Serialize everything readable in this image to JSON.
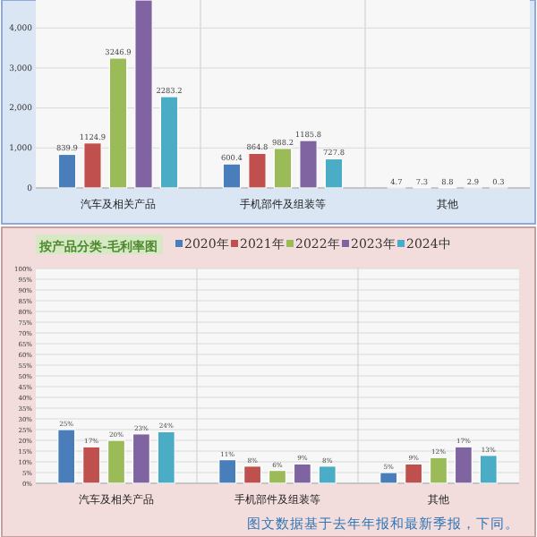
{
  "chart_data": [
    {
      "type": "bar",
      "categories": [
        "汽车及相关产品",
        "手机部件及组装等",
        "其他"
      ],
      "ylim": [
        0,
        4700
      ],
      "yticks": [
        0,
        {
          "value": 1000,
          "label": "1,000"
        },
        {
          "value": 2000,
          "label": "2,000"
        },
        {
          "value": 3000,
          "label": "3,000"
        },
        {
          "value": 4000,
          "label": "4,000"
        }
      ],
      "grid": true,
      "series": [
        {
          "color": "#4a7ebb",
          "values": [
            839.9,
            600.4,
            4.7
          ],
          "value_labels": [
            "839.9",
            "600.4",
            "4.7"
          ]
        },
        {
          "color": "#c0504d",
          "values": [
            1124.9,
            864.8,
            7.3
          ],
          "value_labels": [
            "1124.9",
            "864.8",
            "7.3"
          ]
        },
        {
          "color": "#9bbb59",
          "values": [
            3246.9,
            988.2,
            8.8
          ],
          "value_labels": [
            "3246.9",
            "988.2",
            "8.8"
          ]
        },
        {
          "color": "#8064a2",
          "values": [
            4700,
            1185.8,
            2.9
          ],
          "value_labels": [
            null,
            "1185.8",
            "2.9"
          ]
        },
        {
          "color": "#4bacc6",
          "values": [
            2283.2,
            727.8,
            0.3
          ],
          "value_labels": [
            "2283.2",
            "727.8",
            "0.3"
          ]
        }
      ]
    },
    {
      "type": "bar",
      "title": "按产品分类-毛利率图",
      "categories": [
        "汽车及相关产品",
        "手机部件及组装等",
        "其他"
      ],
      "ylim": [
        0,
        100
      ],
      "yticks": [
        {
          "value": 0,
          "label": "0%"
        },
        {
          "value": 5,
          "label": "5%"
        },
        {
          "value": 10,
          "label": "10%"
        },
        {
          "value": 15,
          "label": "15%"
        },
        {
          "value": 20,
          "label": "20%"
        },
        {
          "value": 25,
          "label": "25%"
        },
        {
          "value": 30,
          "label": "30%"
        },
        {
          "value": 35,
          "label": "35%"
        },
        {
          "value": 40,
          "label": "40%"
        },
        {
          "value": 45,
          "label": "45%"
        },
        {
          "value": 50,
          "label": "50%"
        },
        {
          "value": 55,
          "label": "55%"
        },
        {
          "value": 60,
          "label": "60%"
        },
        {
          "value": 65,
          "label": "65%"
        },
        {
          "value": 70,
          "label": "70%"
        },
        {
          "value": 75,
          "label": "75%"
        },
        {
          "value": 80,
          "label": "80%"
        },
        {
          "value": 85,
          "label": "85%"
        },
        {
          "value": 90,
          "label": "90%"
        },
        {
          "value": 95,
          "label": "95%"
        },
        {
          "value": 100,
          "label": "100%"
        }
      ],
      "grid": true,
      "legend": "top",
      "annotations": [
        "图文数据基于去年年报和最新季报，下同。"
      ],
      "series": [
        {
          "name": "2020年",
          "color": "#4a7ebb",
          "values": [
            25,
            11,
            5
          ],
          "value_labels": [
            "25%",
            "11%",
            "5%"
          ]
        },
        {
          "name": "2021年",
          "color": "#c0504d",
          "values": [
            17,
            8,
            9
          ],
          "value_labels": [
            "17%",
            "8%",
            "9%"
          ]
        },
        {
          "name": "2022年",
          "color": "#9bbb59",
          "values": [
            20,
            6,
            12
          ],
          "value_labels": [
            "20%",
            "6%",
            "12%"
          ]
        },
        {
          "name": "2023年",
          "color": "#8064a2",
          "values": [
            23,
            9,
            17
          ],
          "value_labels": [
            "23%",
            "9%",
            "17%"
          ]
        },
        {
          "name": "2024中",
          "color": "#4bacc6",
          "values": [
            24,
            8,
            13
          ],
          "value_labels": [
            "24%",
            "8%",
            "13%"
          ]
        }
      ]
    }
  ]
}
